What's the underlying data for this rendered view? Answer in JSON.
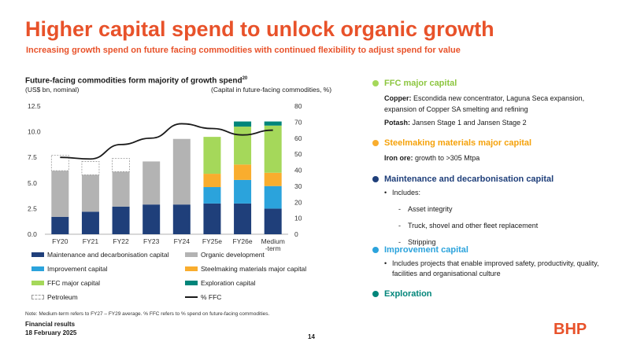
{
  "slide": {
    "title": "Higher capital spend to unlock organic growth",
    "subtitle": "Increasing growth spend on future facing commodities with continued flexibility to adjust spend for value",
    "note": "Note: Medium-term refers to FY27 – FY29 average. % FFC refers to % spend on future-facing commodities.",
    "footer_line1": "Financial results",
    "footer_line2": "18 February 2025",
    "page_number": "14",
    "logo_text": "BHP"
  },
  "chart_header": {
    "title": "Future-facing commodities form majority of growth spend",
    "title_sup": "20",
    "unit_left": "(US$ bn, nominal)",
    "unit_right": "(Capital in future-facing commodities, %)"
  },
  "chart_data": {
    "type": "bar",
    "stacked": true,
    "categories": [
      "FY20",
      "FY21",
      "FY22",
      "FY23",
      "FY24",
      "FY25e",
      "FY26e",
      "Medium-term"
    ],
    "category_labels": [
      [
        "FY20"
      ],
      [
        "FY21"
      ],
      [
        "FY22"
      ],
      [
        "FY23"
      ],
      [
        "FY24"
      ],
      [
        "FY25e"
      ],
      [
        "FY26e"
      ],
      [
        "Medium",
        "-term"
      ]
    ],
    "ylim": [
      0,
      12.5
    ],
    "yticks": [
      "0.0",
      "2.5",
      "5.0",
      "7.5",
      "10.0",
      "12.5"
    ],
    "y2lim": [
      0,
      80
    ],
    "y2ticks": [
      "0",
      "10",
      "20",
      "30",
      "40",
      "50",
      "60",
      "70",
      "80"
    ],
    "series": [
      {
        "name": "Maintenance and decarbonisation capital",
        "color": "#1f3f7a",
        "values": [
          1.7,
          2.2,
          2.7,
          2.9,
          2.9,
          3.0,
          3.0,
          2.5
        ]
      },
      {
        "name": "Improvement capital",
        "color": "#2ba3dc",
        "values": [
          0,
          0,
          0,
          0,
          0,
          1.6,
          2.3,
          2.2
        ]
      },
      {
        "name": "Steelmaking materials major capital",
        "color": "#f9ad2e",
        "values": [
          0,
          0,
          0,
          0,
          0,
          1.3,
          1.5,
          1.3
        ]
      },
      {
        "name": "FFC major capital",
        "color": "#a5d85a",
        "values": [
          0,
          0,
          0,
          0,
          0,
          3.6,
          3.7,
          4.6
        ]
      },
      {
        "name": "Exploration capital",
        "color": "#00857a",
        "values": [
          0,
          0,
          0,
          0,
          0,
          0,
          0.5,
          0.4
        ]
      },
      {
        "name": "Organic development",
        "color": "#b3b3b3",
        "values": [
          4.5,
          3.6,
          3.4,
          4.2,
          6.4,
          0,
          0,
          0
        ]
      },
      {
        "name": "Petroleum",
        "color": "#ffffff",
        "dashed": true,
        "values": [
          1.5,
          1.3,
          1.3,
          0,
          0,
          0,
          0,
          0
        ]
      }
    ],
    "line": {
      "name": "% FFC",
      "color": "#1a1a1a",
      "axis": "right",
      "values": [
        48,
        47,
        56,
        60,
        69,
        66,
        62,
        65
      ]
    }
  },
  "legend": [
    {
      "label": "Maintenance and decarbonisation capital",
      "color": "#1f3f7a",
      "kind": "box"
    },
    {
      "label": "Organic development",
      "color": "#b3b3b3",
      "kind": "box"
    },
    {
      "label": "Improvement capital",
      "color": "#2ba3dc",
      "kind": "box"
    },
    {
      "label": "Steelmaking materials major capital",
      "color": "#f9ad2e",
      "kind": "box"
    },
    {
      "label": "FFC major capital",
      "color": "#a5d85a",
      "kind": "box"
    },
    {
      "label": "Exploration capital",
      "color": "#00857a",
      "kind": "box"
    },
    {
      "label": "Petroleum",
      "color": "#ffffff",
      "kind": "dashed"
    },
    {
      "label": "% FFC",
      "color": "#1a1a1a",
      "kind": "line"
    }
  ],
  "right_panel": {
    "ffc": {
      "heading": "FFC major capital",
      "color": "#a5d85a",
      "copper_label": "Copper:",
      "copper_text": " Escondida new concentrator, Laguna Seca expansion, expansion of Copper SA smelting and refining",
      "potash_label": "Potash:",
      "potash_text": " Jansen Stage 1 and Jansen Stage 2"
    },
    "steel": {
      "heading": "Steelmaking materials major capital",
      "color": "#f9ad2e",
      "iron_label": "Iron ore:",
      "iron_text": " growth to >305 Mtpa"
    },
    "maint": {
      "heading": "Maintenance and decarbonisation capital",
      "color": "#1f3f7a",
      "includes": "Includes:",
      "items": [
        "Asset integrity",
        "Truck, shovel and other fleet replacement",
        "Stripping"
      ]
    },
    "improve": {
      "heading": "Improvement capital",
      "color": "#2ba3dc",
      "text": "Includes projects that enable improved safety, productivity, quality, facilities and organisational culture"
    },
    "explore": {
      "heading": "Exploration",
      "color": "#00857a"
    }
  }
}
